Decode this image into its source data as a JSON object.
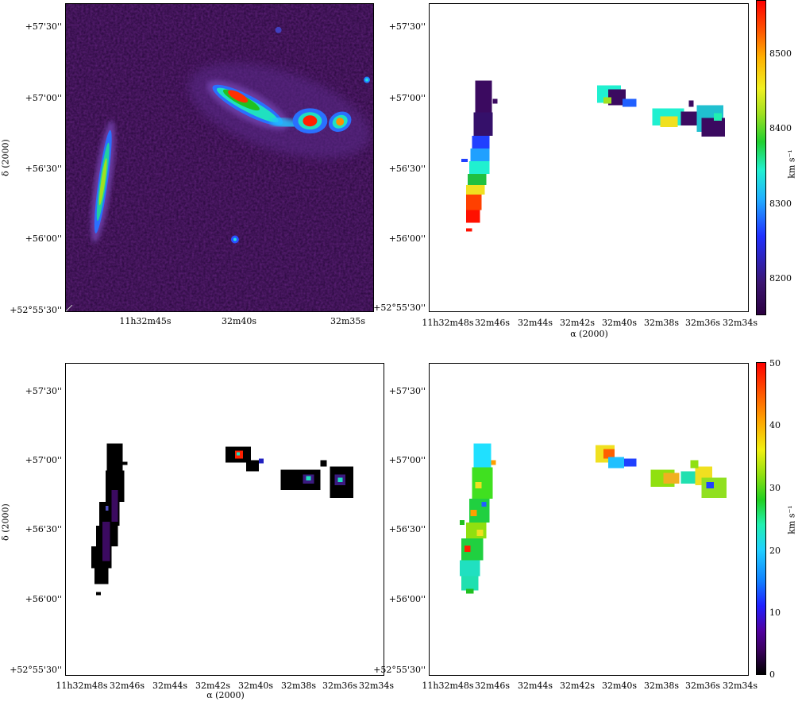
{
  "panel1": {
    "ra_labels": [
      "11h32m45s",
      "32m40s",
      "32m35s"
    ],
    "dec_labels": [
      "+57'30''",
      "+57'00''",
      "+56'30''",
      "+56'00''",
      "+52°55'30''"
    ],
    "dec_title": "δ (2000)"
  },
  "panel2": {
    "dec_labels": [
      "+57'30''",
      "+57'00''",
      "+56'30''",
      "+56'00''",
      "+52°55'30''"
    ],
    "ra_labels": [
      "11h32m48s",
      "32m46s",
      "32m44s",
      "32m42s",
      "32m40s",
      "32m38s",
      "32m36s",
      "32m34s"
    ],
    "ra_title": "α (2000)",
    "colorbar": {
      "ticks": [
        "8500",
        "8400",
        "8300",
        "8200"
      ],
      "unit": "km s⁻¹"
    }
  },
  "panel3": {
    "dec_labels": [
      "+57'30''",
      "+57'00''",
      "+56'30''",
      "+56'00''",
      "+52°55'30''"
    ],
    "ra_labels": [
      "11h32m48s",
      "32m46s",
      "32m44s",
      "32m42s",
      "32m40s",
      "32m38s",
      "32m36s",
      "32m34s"
    ],
    "ra_title": "α (2000)",
    "dec_title": "δ (2000)"
  },
  "panel4": {
    "dec_labels": [
      "+57'30''",
      "+57'00''",
      "+56'30''",
      "+56'00''",
      "+52°55'30''"
    ],
    "ra_labels": [
      "11h32m48s",
      "32m46s",
      "32m44s",
      "32m42s",
      "32m40s",
      "32m38s",
      "32m36s",
      "32m34s"
    ],
    "colorbar": {
      "ticks": [
        "50",
        "40",
        "30",
        "20",
        "10",
        "0"
      ],
      "unit": "km s⁻¹"
    }
  }
}
